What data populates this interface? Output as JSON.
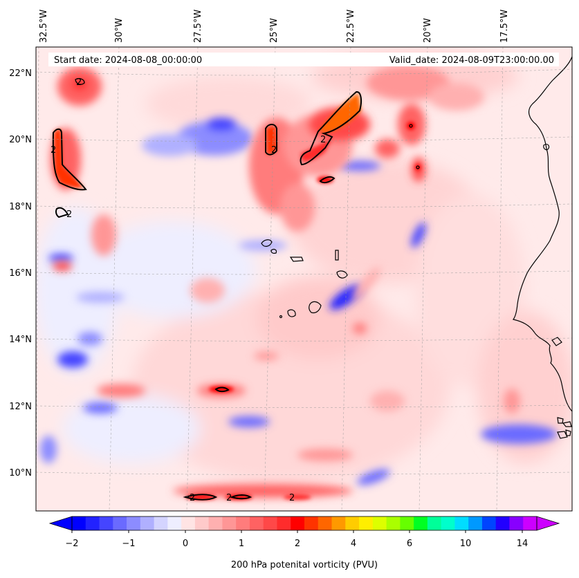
{
  "map": {
    "header": {
      "start_date": "Start date: 2024-08-08_00:00:00",
      "valid_date": "Valid_date: 2024-08-09T23:00:00.00"
    },
    "longitude_labels": [
      "32.5°W",
      "30°W",
      "27.5°W",
      "25°W",
      "22.5°W",
      "20°W",
      "17.5°W"
    ],
    "latitude_labels": [
      "22°N",
      "20°N",
      "18°N",
      "16°N",
      "14°N",
      "12°N",
      "10°N"
    ],
    "contour_level_labels": [
      "2",
      "2",
      "2",
      "2",
      "2",
      "2",
      "2",
      "2"
    ],
    "colorbar": {
      "label": "200 hPa potenital vorticity (PVU)",
      "ticks": [
        "−2",
        "−1",
        "0",
        "1",
        "2",
        "4",
        "6",
        "10",
        "14"
      ],
      "colors": [
        "#0000ff",
        "#2222ff",
        "#4545ff",
        "#6a6aff",
        "#8c8cff",
        "#b0b0ff",
        "#d4d4ff",
        "#eeeeff",
        "#ffe4e4",
        "#ffcaca",
        "#ffb0b0",
        "#ff9696",
        "#ff7c7c",
        "#ff6262",
        "#ff4848",
        "#ff2c2c",
        "#ff0000",
        "#ff3300",
        "#ff6600",
        "#ff9900",
        "#ffcc00",
        "#ffee00",
        "#ddff00",
        "#aaff00",
        "#66ff00",
        "#00ff22",
        "#00ff99",
        "#00ffcc",
        "#00ddff",
        "#0099ff",
        "#0044ff",
        "#2200ff",
        "#8800ff",
        "#cc00ff"
      ]
    }
  }
}
